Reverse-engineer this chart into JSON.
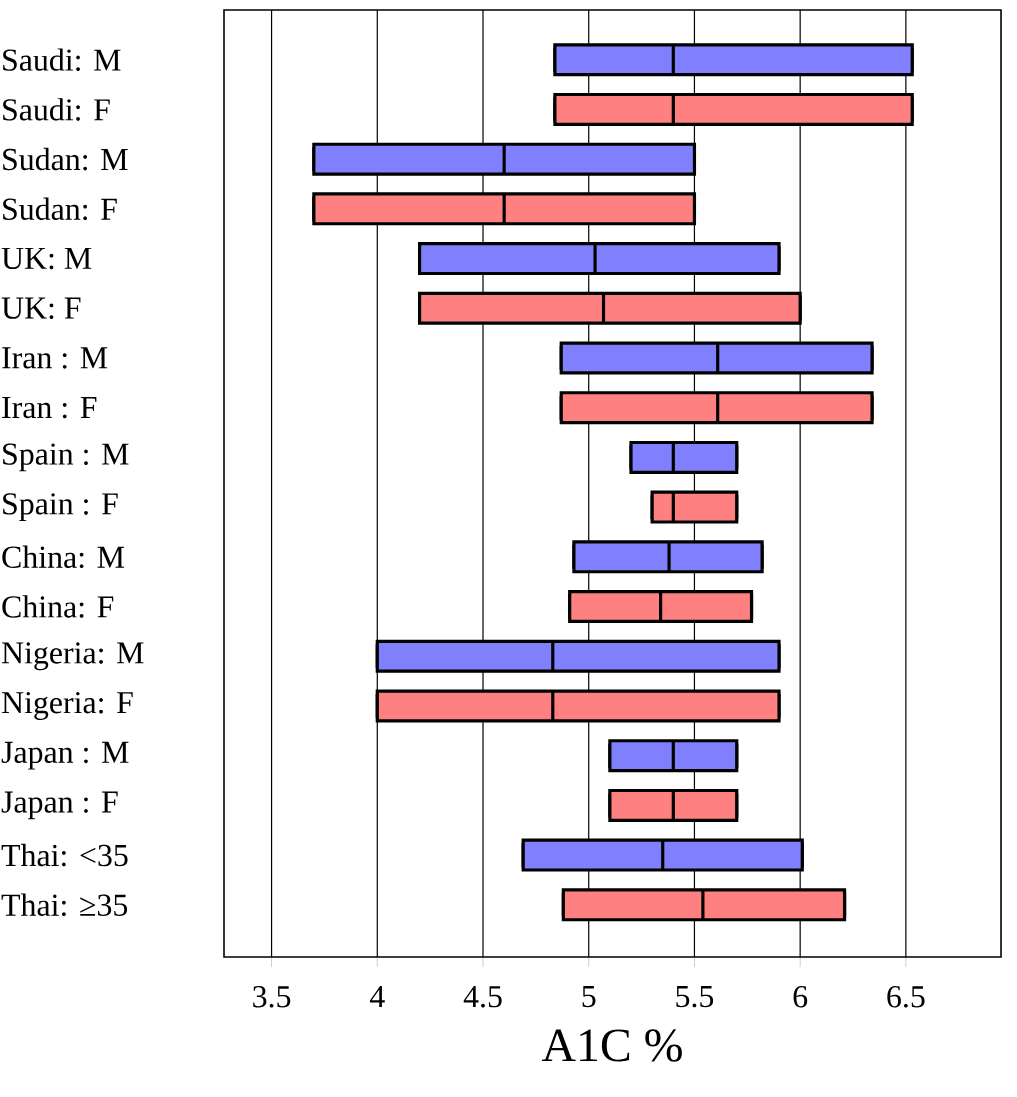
{
  "chart_data": {
    "type": "box",
    "orientation": "horizontal",
    "xlabel": "A1C    %",
    "categories": [
      "Saudi: M",
      "Saudi: F",
      "Sudan: M",
      "Sudan: F",
      "UK:  M",
      "UK:  F",
      "Iran : M",
      "Iran : F",
      "Spain : M",
      "Spain : F",
      "China: M",
      "China: F",
      "Nigeria: M",
      "Nigeria: F",
      "Japan : M",
      "Japan : F",
      "Thai: <35",
      "Thai: ≥35"
    ],
    "boxes": [
      {
        "low": 4.84,
        "q1": 4.84,
        "median": 5.4,
        "q3": 6.53,
        "high": 6.53
      },
      {
        "low": 4.84,
        "q1": 4.84,
        "median": 5.4,
        "q3": 6.53,
        "high": 6.53
      },
      {
        "low": 3.7,
        "q1": 3.7,
        "median": 4.6,
        "q3": 5.5,
        "high": 5.5
      },
      {
        "low": 3.7,
        "q1": 3.7,
        "median": 4.6,
        "q3": 5.5,
        "high": 5.5
      },
      {
        "low": 4.2,
        "q1": 4.2,
        "median": 5.03,
        "q3": 5.9,
        "high": 5.9
      },
      {
        "low": 4.2,
        "q1": 4.2,
        "median": 5.07,
        "q3": 6.0,
        "high": 6.0
      },
      {
        "low": 4.87,
        "q1": 4.87,
        "median": 5.61,
        "q3": 6.34,
        "high": 6.34
      },
      {
        "low": 4.87,
        "q1": 4.87,
        "median": 5.61,
        "q3": 6.34,
        "high": 6.34
      },
      {
        "low": 5.2,
        "q1": 5.2,
        "median": 5.4,
        "q3": 5.7,
        "high": 5.7
      },
      {
        "low": 5.3,
        "q1": 5.3,
        "median": 5.4,
        "q3": 5.7,
        "high": 5.7
      },
      {
        "low": 4.93,
        "q1": 4.93,
        "median": 5.38,
        "q3": 5.82,
        "high": 5.82
      },
      {
        "low": 4.91,
        "q1": 4.91,
        "median": 5.34,
        "q3": 5.77,
        "high": 5.77
      },
      {
        "low": 4.0,
        "q1": 4.0,
        "median": 4.83,
        "q3": 5.9,
        "high": 5.9
      },
      {
        "low": 4.0,
        "q1": 4.0,
        "median": 4.83,
        "q3": 5.9,
        "high": 5.9
      },
      {
        "low": 5.1,
        "q1": 5.1,
        "median": 5.4,
        "q3": 5.7,
        "high": 5.7
      },
      {
        "low": 5.1,
        "q1": 5.1,
        "median": 5.4,
        "q3": 5.7,
        "high": 5.7
      },
      {
        "low": 4.69,
        "q1": 4.69,
        "median": 5.35,
        "q3": 6.01,
        "high": 6.01
      },
      {
        "low": 4.88,
        "q1": 4.88,
        "median": 5.54,
        "q3": 6.21,
        "high": 6.21
      }
    ],
    "colors": [
      "#8080ff",
      "#ff8080",
      "#8080ff",
      "#ff8080",
      "#8080ff",
      "#ff8080",
      "#8080ff",
      "#ff8080",
      "#8080ff",
      "#ff8080",
      "#8080ff",
      "#ff8080",
      "#8080ff",
      "#ff8080",
      "#8080ff",
      "#ff8080",
      "#8080ff",
      "#ff8080"
    ],
    "xlim": [
      3.275,
      6.95
    ],
    "xticks": [
      3.5,
      4,
      4.5,
      5,
      5.5,
      6,
      6.5
    ],
    "grid": "x"
  }
}
